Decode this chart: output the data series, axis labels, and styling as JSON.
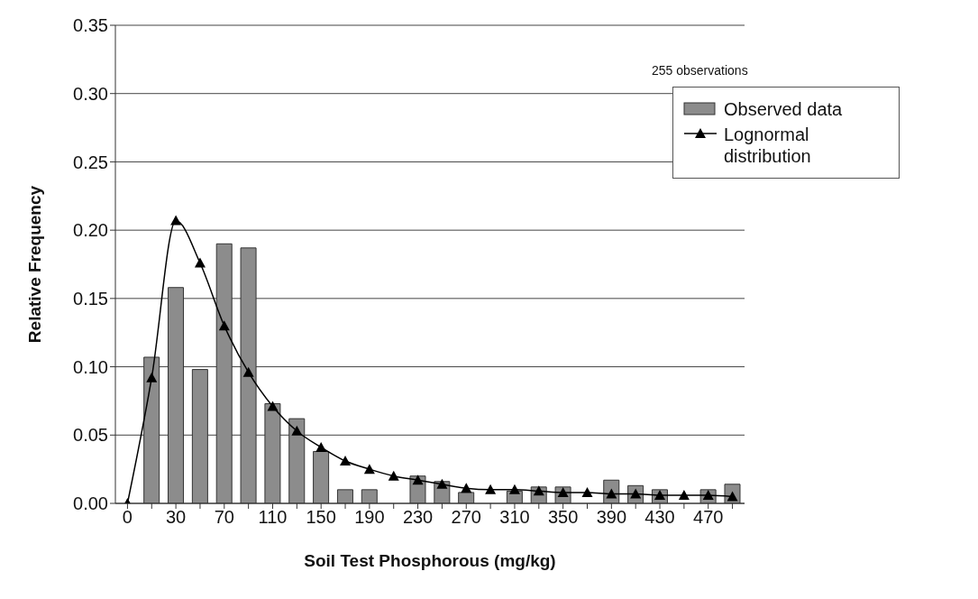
{
  "chart_data": {
    "type": "bar",
    "xlabel": "Soil Test Phosphorous (mg/kg)",
    "ylabel": "Relative Frequency",
    "annotations": [
      "255 observations"
    ],
    "categories": [
      "0",
      null,
      "30",
      null,
      "70",
      null,
      "110",
      null,
      "150",
      null,
      "190",
      null,
      "230",
      null,
      "270",
      null,
      "310",
      null,
      "350",
      null,
      "390",
      null,
      "430",
      null,
      "470",
      null
    ],
    "series": [
      {
        "name": "Observed data",
        "color": "#8c8c8c",
        "values": [
          null,
          0.107,
          0.158,
          0.098,
          0.19,
          0.187,
          0.073,
          0.062,
          0.038,
          0.01,
          0.01,
          0,
          0.02,
          0.016,
          0.008,
          0,
          0.009,
          0.012,
          0.012,
          0,
          0.017,
          0.013,
          0.01,
          0,
          0.01,
          0.014
        ]
      },
      {
        "name": "Lognormal distribution",
        "type": "line",
        "color": "#000000",
        "marker": "triangle",
        "values": [
          0,
          0.092,
          0.207,
          0.176,
          0.13,
          0.096,
          0.071,
          0.053,
          0.041,
          0.031,
          0.025,
          0.02,
          0.017,
          0.014,
          0.011,
          0.01,
          0.01,
          0.009,
          0.008,
          0.008,
          0.007,
          0.007,
          0.006,
          0.006,
          0.006,
          0.005
        ]
      }
    ],
    "ylim": [
      0,
      0.35
    ],
    "yticks": [
      {
        "value": 0,
        "label": "0.00"
      },
      {
        "value": 0.05,
        "label": "0.05"
      },
      {
        "value": 0.1,
        "label": "0.10"
      },
      {
        "value": 0.15,
        "label": "0.15"
      },
      {
        "value": 0.2,
        "label": "0.20"
      },
      {
        "value": 0.25,
        "label": "0.25"
      },
      {
        "value": 0.3,
        "label": "0.30"
      },
      {
        "value": 0.35,
        "label": "0.35"
      }
    ],
    "grid": "y",
    "legend": "top right"
  }
}
